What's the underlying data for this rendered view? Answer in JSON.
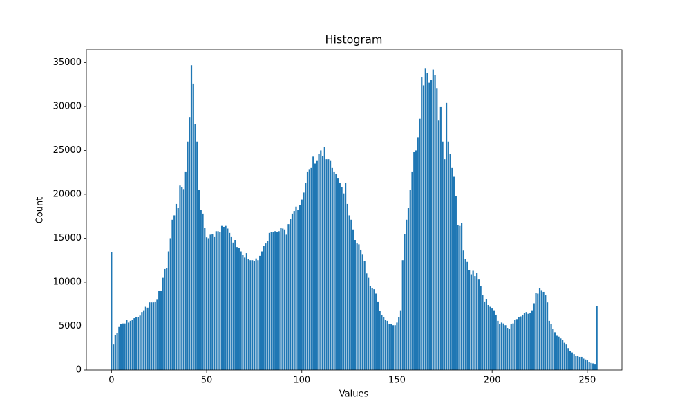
{
  "chart_data": {
    "type": "bar",
    "title": "Histogram",
    "x_label": "Values",
    "y_label": "Count",
    "color": "#1f77b4",
    "x": [
      0,
      1,
      2,
      3,
      4,
      5,
      6,
      7,
      8,
      9,
      10,
      11,
      12,
      13,
      14,
      15,
      16,
      17,
      18,
      19,
      20,
      21,
      22,
      23,
      24,
      25,
      26,
      27,
      28,
      29,
      30,
      31,
      32,
      33,
      34,
      35,
      36,
      37,
      38,
      39,
      40,
      41,
      42,
      43,
      44,
      45,
      46,
      47,
      48,
      49,
      50,
      51,
      52,
      53,
      54,
      55,
      56,
      57,
      58,
      59,
      60,
      61,
      62,
      63,
      64,
      65,
      66,
      67,
      68,
      69,
      70,
      71,
      72,
      73,
      74,
      75,
      76,
      77,
      78,
      79,
      80,
      81,
      82,
      83,
      84,
      85,
      86,
      87,
      88,
      89,
      90,
      91,
      92,
      93,
      94,
      95,
      96,
      97,
      98,
      99,
      100,
      101,
      102,
      103,
      104,
      105,
      106,
      107,
      108,
      109,
      110,
      111,
      112,
      113,
      114,
      115,
      116,
      117,
      118,
      119,
      120,
      121,
      122,
      123,
      124,
      125,
      126,
      127,
      128,
      129,
      130,
      131,
      132,
      133,
      134,
      135,
      136,
      137,
      138,
      139,
      140,
      141,
      142,
      143,
      144,
      145,
      146,
      147,
      148,
      149,
      150,
      151,
      152,
      153,
      154,
      155,
      156,
      157,
      158,
      159,
      160,
      161,
      162,
      163,
      164,
      165,
      166,
      167,
      168,
      169,
      170,
      171,
      172,
      173,
      174,
      175,
      176,
      177,
      178,
      179,
      180,
      181,
      182,
      183,
      184,
      185,
      186,
      187,
      188,
      189,
      190,
      191,
      192,
      193,
      194,
      195,
      196,
      197,
      198,
      199,
      200,
      201,
      202,
      203,
      204,
      205,
      206,
      207,
      208,
      209,
      210,
      211,
      212,
      213,
      214,
      215,
      216,
      217,
      218,
      219,
      220,
      221,
      222,
      223,
      224,
      225,
      226,
      227,
      228,
      229,
      230,
      231,
      232,
      233,
      234,
      235,
      236,
      237,
      238,
      239,
      240,
      241,
      242,
      243,
      244,
      245,
      246,
      247,
      248,
      249,
      250,
      251,
      252,
      253,
      254,
      255
    ],
    "values": [
      13400,
      2900,
      4000,
      4200,
      4900,
      5200,
      5300,
      5300,
      5700,
      5400,
      5600,
      5700,
      5900,
      6000,
      6000,
      6200,
      6600,
      6800,
      7200,
      7100,
      7700,
      7700,
      7700,
      7800,
      8000,
      9000,
      9000,
      10500,
      11500,
      11600,
      13500,
      15000,
      17100,
      17600,
      18900,
      18500,
      21000,
      20800,
      20600,
      22600,
      26000,
      28800,
      34700,
      32600,
      28000,
      26000,
      20500,
      18200,
      17800,
      16200,
      15100,
      15000,
      15400,
      15500,
      15200,
      15800,
      15800,
      15700,
      16400,
      16300,
      16400,
      16100,
      15600,
      15200,
      14500,
      14800,
      14000,
      13900,
      13500,
      13100,
      12800,
      13300,
      12600,
      12500,
      12500,
      12400,
      12700,
      12500,
      13000,
      13500,
      14100,
      14400,
      14700,
      15600,
      15700,
      15700,
      15800,
      15700,
      15800,
      16200,
      16100,
      16000,
      15400,
      16600,
      17200,
      17800,
      18100,
      18600,
      18200,
      18800,
      19400,
      20200,
      21300,
      22600,
      22800,
      23000,
      24300,
      23500,
      23800,
      24600,
      25000,
      24400,
      25400,
      24000,
      24000,
      23800,
      23000,
      22600,
      22300,
      21800,
      21300,
      20800,
      20100,
      21300,
      18900,
      17600,
      17100,
      16000,
      14800,
      14400,
      14300,
      13700,
      13200,
      12400,
      11000,
      10500,
      9600,
      9300,
      9200,
      8700,
      7800,
      6700,
      6300,
      6000,
      5700,
      5600,
      5200,
      5200,
      5100,
      5100,
      5400,
      6000,
      6800,
      12500,
      15500,
      17100,
      18500,
      20500,
      22600,
      24800,
      25000,
      26500,
      28600,
      33300,
      32400,
      34300,
      33800,
      32700,
      33000,
      34200,
      33600,
      32100,
      28400,
      30000,
      26000,
      24000,
      30400,
      26000,
      24600,
      23000,
      22000,
      19800,
      16500,
      16400,
      16700,
      13600,
      12600,
      12300,
      11400,
      10900,
      11300,
      10700,
      11100,
      10300,
      9600,
      8500,
      7800,
      8100,
      7400,
      7200,
      7000,
      6800,
      6300,
      5600,
      5200,
      5400,
      5300,
      5100,
      4800,
      4700,
      5200,
      5300,
      5700,
      5800,
      6000,
      6100,
      6300,
      6500,
      6600,
      6400,
      6500,
      6800,
      7600,
      8800,
      8700,
      9300,
      9100,
      8900,
      8500,
      7700,
      5600,
      5200,
      4700,
      4300,
      3900,
      3800,
      3600,
      3400,
      3100,
      2900,
      2500,
      2200,
      2000,
      1800,
      1600,
      1600,
      1500,
      1500,
      1300,
      1200,
      1100,
      900,
      800,
      750,
      700,
      7300
    ],
    "xlim": [
      -13.19,
      268.19
    ],
    "xticks": [
      0,
      50,
      100,
      150,
      200,
      250
    ],
    "ylim": [
      0,
      36450
    ],
    "yticks": [
      0,
      5000,
      10000,
      15000,
      20000,
      25000,
      30000,
      35000
    ]
  }
}
